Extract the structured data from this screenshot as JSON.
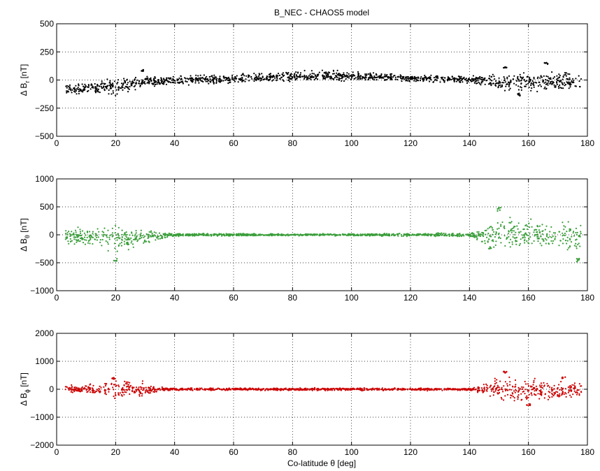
{
  "figure": {
    "title": "B_NEC - CHAOS5 model",
    "xlabel": "Co-latitude θ [deg]"
  },
  "chart_data": [
    {
      "type": "scatter",
      "ylabel_base": "Δ B",
      "ylabel_sub": "r",
      "ylabel_unit": "[nT]",
      "color": "#000000",
      "xlim": [
        0,
        180
      ],
      "ylim": [
        -500,
        500
      ],
      "xticks": [
        0,
        20,
        40,
        60,
        80,
        100,
        120,
        140,
        160,
        180
      ],
      "yticks": [
        -500,
        -250,
        0,
        250,
        500
      ],
      "grid": true,
      "x_range": [
        3,
        178
      ],
      "envelope": [
        {
          "x": 3,
          "min": -130,
          "max": -30
        },
        {
          "x": 10,
          "min": -140,
          "max": -10
        },
        {
          "x": 20,
          "min": -150,
          "max": 30
        },
        {
          "x": 30,
          "min": -70,
          "max": 40
        },
        {
          "x": 40,
          "min": -50,
          "max": 40
        },
        {
          "x": 60,
          "min": -40,
          "max": 60
        },
        {
          "x": 80,
          "min": -20,
          "max": 80
        },
        {
          "x": 90,
          "min": -10,
          "max": 90
        },
        {
          "x": 100,
          "min": -10,
          "max": 80
        },
        {
          "x": 120,
          "min": -20,
          "max": 50
        },
        {
          "x": 140,
          "min": -30,
          "max": 40
        },
        {
          "x": 150,
          "min": -90,
          "max": 60
        },
        {
          "x": 160,
          "min": -110,
          "max": 80
        },
        {
          "x": 170,
          "min": -130,
          "max": 100
        },
        {
          "x": 178,
          "min": -120,
          "max": 80
        }
      ],
      "spikes": [
        {
          "x": 29,
          "y": 90
        },
        {
          "x": 152,
          "y": 120
        },
        {
          "x": 166,
          "y": 160
        },
        {
          "x": 157,
          "y": -140
        }
      ]
    },
    {
      "type": "scatter",
      "ylabel_base": "Δ B",
      "ylabel_sub": "θ",
      "ylabel_unit": "[nT]",
      "color": "#3a9e3a",
      "xlim": [
        0,
        180
      ],
      "ylim": [
        -1000,
        1000
      ],
      "xticks": [
        0,
        20,
        40,
        60,
        80,
        100,
        120,
        140,
        160,
        180
      ],
      "yticks": [
        -1000,
        -500,
        0,
        500,
        1000
      ],
      "grid": true,
      "x_range": [
        3,
        178
      ],
      "envelope": [
        {
          "x": 3,
          "min": -200,
          "max": 150
        },
        {
          "x": 10,
          "min": -250,
          "max": 150
        },
        {
          "x": 20,
          "min": -350,
          "max": 200
        },
        {
          "x": 30,
          "min": -200,
          "max": 100
        },
        {
          "x": 40,
          "min": -30,
          "max": 30
        },
        {
          "x": 80,
          "min": -20,
          "max": 20
        },
        {
          "x": 100,
          "min": -20,
          "max": 20
        },
        {
          "x": 140,
          "min": -40,
          "max": 40
        },
        {
          "x": 145,
          "min": -200,
          "max": 200
        },
        {
          "x": 150,
          "min": -300,
          "max": 350
        },
        {
          "x": 160,
          "min": -250,
          "max": 300
        },
        {
          "x": 170,
          "min": -300,
          "max": 250
        },
        {
          "x": 178,
          "min": -350,
          "max": 250
        }
      ],
      "spikes": [
        {
          "x": 20,
          "y": -480
        },
        {
          "x": 150,
          "y": 500
        },
        {
          "x": 177,
          "y": -500
        },
        {
          "x": 147,
          "y": -250
        }
      ]
    },
    {
      "type": "scatter",
      "ylabel_base": "Δ B",
      "ylabel_sub": "ϕ",
      "ylabel_unit": "[nT]",
      "color": "#cc0000",
      "xlim": [
        0,
        180
      ],
      "ylim": [
        -2000,
        2000
      ],
      "xticks": [
        0,
        20,
        40,
        60,
        80,
        100,
        120,
        140,
        160,
        180
      ],
      "yticks": [
        -2000,
        -1000,
        0,
        1000,
        2000
      ],
      "grid": true,
      "x_range": [
        3,
        178
      ],
      "envelope": [
        {
          "x": 3,
          "min": -100,
          "max": 150
        },
        {
          "x": 10,
          "min": -150,
          "max": 150
        },
        {
          "x": 20,
          "min": -400,
          "max": 400
        },
        {
          "x": 30,
          "min": -300,
          "max": 250
        },
        {
          "x": 35,
          "min": -100,
          "max": 100
        },
        {
          "x": 40,
          "min": -50,
          "max": 50
        },
        {
          "x": 140,
          "min": -50,
          "max": 50
        },
        {
          "x": 145,
          "min": -200,
          "max": 200
        },
        {
          "x": 150,
          "min": -500,
          "max": 500
        },
        {
          "x": 160,
          "min": -500,
          "max": 400
        },
        {
          "x": 170,
          "min": -400,
          "max": 300
        },
        {
          "x": 178,
          "min": -300,
          "max": 300
        }
      ],
      "spikes": [
        {
          "x": 152,
          "y": 650
        },
        {
          "x": 160,
          "y": -600
        },
        {
          "x": 172,
          "y": 450
        },
        {
          "x": 19,
          "y": 420
        }
      ]
    }
  ]
}
